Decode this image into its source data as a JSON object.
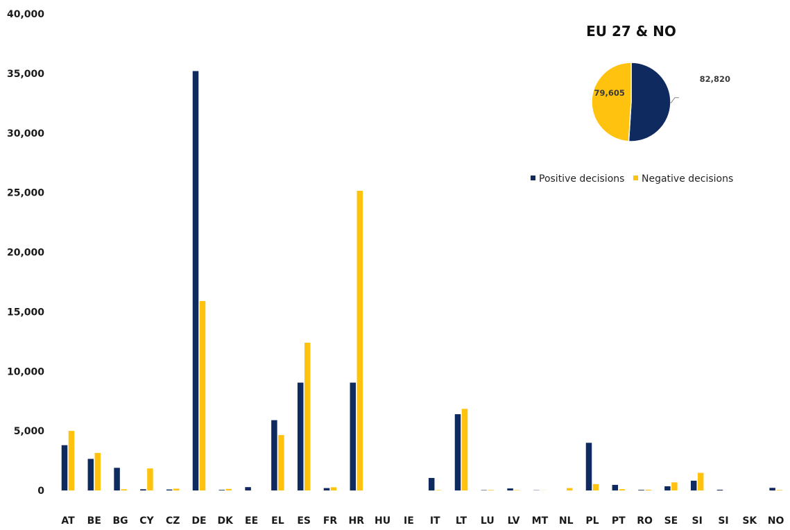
{
  "chart_data": [
    {
      "type": "bar",
      "categories": [
        "AT",
        "BE",
        "BG",
        "CY",
        "CZ",
        "DE",
        "DK",
        "EE",
        "EL",
        "ES",
        "FR",
        "HR",
        "HU",
        "IE",
        "IT",
        "LT",
        "LU",
        "LV",
        "MT",
        "NL",
        "PL",
        "PT",
        "RO",
        "SE",
        "SI",
        "SI",
        "SK",
        "NO"
      ],
      "series": [
        {
          "name": "Positive decisions",
          "color": "#0e2a5e",
          "values": [
            3800,
            2650,
            1900,
            100,
            80,
            35200,
            50,
            280,
            5900,
            9050,
            200,
            9050,
            0,
            0,
            1050,
            6400,
            30,
            170,
            20,
            0,
            4000,
            470,
            50,
            350,
            820,
            60,
            0,
            220
          ]
        },
        {
          "name": "Negative decisions",
          "color": "#ffc20e",
          "values": [
            5000,
            3150,
            100,
            1850,
            150,
            15900,
            130,
            0,
            4650,
            12400,
            270,
            25150,
            0,
            0,
            30,
            6850,
            40,
            30,
            10,
            200,
            530,
            110,
            60,
            680,
            1480,
            0,
            0,
            40
          ]
        }
      ],
      "y_ticks": [
        "0",
        "5,000",
        "10,000",
        "15,000",
        "20,000",
        "25,000",
        "30,000",
        "35,000",
        "40,000"
      ],
      "ylim": [
        0,
        40000
      ],
      "grid": false,
      "legend": "top-right"
    },
    {
      "type": "pie",
      "title": "EU 27 & NO",
      "slices": [
        {
          "name": "Positive decisions",
          "value": 82820,
          "label": "82,820",
          "color": "#0e2a5e"
        },
        {
          "name": "Negative decisions",
          "value": 79605,
          "label": "79,605",
          "color": "#ffc20e"
        }
      ]
    }
  ]
}
